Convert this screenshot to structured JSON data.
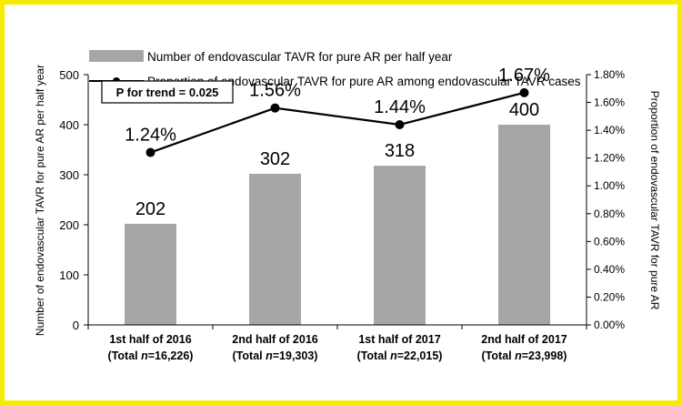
{
  "chart_data": {
    "type": "bar+line",
    "categories": [
      {
        "line1": "1st half of 2016",
        "total_prefix": "(Total ",
        "n_label": "n",
        "total_value": "=16,226)"
      },
      {
        "line1": "2nd half of 2016",
        "total_prefix": "(Total ",
        "n_label": "n",
        "total_value": "=19,303)"
      },
      {
        "line1": "1st half of 2017",
        "total_prefix": "(Total ",
        "n_label": "n",
        "total_value": "=22,015)"
      },
      {
        "line1": "2nd half of 2017",
        "total_prefix": "(Total ",
        "n_label": "n",
        "total_value": "=23,998)"
      }
    ],
    "bar_series": {
      "name": "Number of endovascular TAVR for pure AR per half year",
      "values": [
        202,
        302,
        318,
        400
      ],
      "labels": [
        "202",
        "302",
        "318",
        "400"
      ],
      "color": "#a6a6a6"
    },
    "line_series": {
      "name": "Proportion of endovascular TAVR for pure AR among endovascular TAVR cases",
      "values": [
        1.24,
        1.56,
        1.44,
        1.67
      ],
      "labels": [
        "1.24%",
        "1.56%",
        "1.44%",
        "1.67%"
      ],
      "color": "#000000"
    },
    "y_left": {
      "label": "Number of endovascular TAVR for pure AR per half year",
      "range": [
        0,
        500
      ],
      "ticks": [
        0,
        100,
        200,
        300,
        400,
        500
      ],
      "tick_labels": [
        "0",
        "100",
        "200",
        "300",
        "400",
        "500"
      ]
    },
    "y_right": {
      "label": "Proportion of endovascular TAVR for pure AR",
      "range": [
        0,
        1.8
      ],
      "ticks": [
        0,
        0.2,
        0.4,
        0.6,
        0.8,
        1.0,
        1.2,
        1.4,
        1.6,
        1.8
      ],
      "tick_labels": [
        "0.00%",
        "0.20%",
        "0.40%",
        "0.60%",
        "0.80%",
        "1.00%",
        "1.20%",
        "1.40%",
        "1.60%",
        "1.80%"
      ]
    },
    "annotation": "P for trend = 0.025",
    "legend_position": "top",
    "grid": false
  },
  "colors": {
    "frame_border": "#f5ec00",
    "bar": "#a6a6a6",
    "line": "#000000"
  }
}
